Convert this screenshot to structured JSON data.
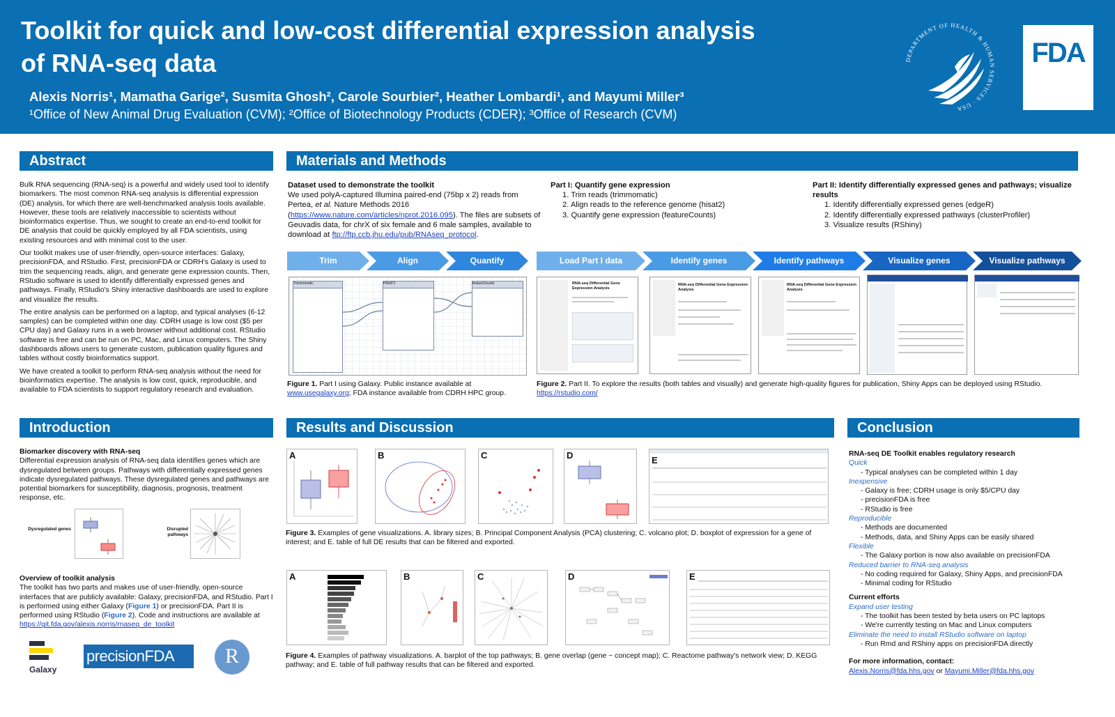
{
  "header": {
    "title_line1": "Toolkit for quick and low-cost differential expression analysis",
    "title_line2": "of RNA-seq data",
    "authors": "Alexis Norris¹, Mamatha Garige², Susmita Ghosh², Carole Sourbier², Heather Lombardi¹, and Mayumi Miller³",
    "affiliations": "¹Office of New Animal Drug Evaluation (CVM); ²Office of Biotechnology Products (CDER); ³Office of Research (CVM)",
    "seal_text": "DEPARTMENT OF HEALTH & HUMAN SERVICES · USA",
    "fda_logo": "FDA"
  },
  "abstract": {
    "heading": "Abstract",
    "p1": "Bulk RNA sequencing (RNA-seq) is a powerful and widely used tool to identify biomarkers. The most common RNA-seq analysis is differential expression (DE) analysis, for which there are well-benchmarked analysis tools available. However, these tools are relatively inaccessible to scientists without bioinformatics expertise. Thus, we sought to create an end-to-end toolkit for DE analysis that could be quickly employed by all FDA scientists, using existing resources and with minimal cost to the user.",
    "p2": "Our toolkit makes use of user-friendly, open-source interfaces: Galaxy, precisionFDA, and RStudio. First, precisionFDA or CDRH's Galaxy is used to trim the sequencing reads, align, and generate gene expression counts. Then, RStudio software is used to identify differentially expressed genes and pathways. Finally, RStudio's Shiny interactive dashboards are used to explore and visualize the results.",
    "p3": "The entire analysis can be performed on a laptop, and typical analyses (6-12 samples) can be completed within one day. CDRH usage is low cost ($5 per CPU day) and Galaxy runs in a web browser without additional cost. RStudio software is free and can be run on PC, Mac, and Linux computers. The Shiny dashboards allows users to generate custom, publication quality figures and tables without costly bioinformatics support.",
    "p4": "We have created a toolkit to perform RNA-seq analysis without the need for bioinformatics expertise. The analysis is low cost, quick, reproducible, and available to FDA scientists to support regulatory research and evaluation."
  },
  "introduction": {
    "heading": "Introduction",
    "sub1": "Biomarker discovery with RNA-seq",
    "p1": "Differential expression analysis of RNA-seq data identifies genes which are dysregulated between groups. Pathways with differentially expressed genes indicate dysregulated pathways. These dysregulated genes and pathways are potential biomarkers for susceptibility, diagnosis, prognosis, treatment response, etc.",
    "label_genes": "Dysregulated genes",
    "label_pathways": "Disrupted pathways",
    "sub2": "Overview of toolkit analysis",
    "p2a": "The toolkit has two parts and makes use of user-friendly, open-source interfaces that are publicly available: Galaxy, precisionFDA, and RStudio. Part I is performed using either Galaxy (",
    "fig1_ref": "Figure 1",
    "p2b": ") or precisionFDA. Part II is performed using RStudio (",
    "fig2_ref": "Figure 2",
    "p2c": "). Code and instructions are available at ",
    "url": "https://git.fda.gov/alexis.norris/rnaseq_de_toolkit",
    "logo_galaxy": "Galaxy",
    "logo_pfda": "precisionFDA",
    "logo_r": "R"
  },
  "methods": {
    "heading": "Materials and Methods",
    "dataset_title": "Dataset used to demonstrate the toolkit",
    "dataset_a": "We used polyA-captured Illumina paired-end (75bp x 2) reads from Pertea, ",
    "dataset_etal": "et al.",
    "dataset_b": " Nature Methods 2016 (",
    "dataset_url": "https://www.nature.com/articles/nprot.2016.095",
    "dataset_c": "). The files are subsets of Geuvadis data, for chrX of six female and 6 male samples, available to download at ",
    "dataset_ftp": "ftp://ftp.ccb.jhu.edu/pub/RNAseq_protocol",
    "part1_title": "Part I: Quantify gene expression",
    "part1_items": [
      "1. Trim reads (trimmomatic)",
      "2. Align reads to the reference genome (hisat2)",
      "3. Quantify gene expression (featureCounts)"
    ],
    "part2_title": "Part II: Identify differentially expressed genes and pathways; visualize results",
    "part2_items": [
      "1. Identify differentially expressed genes (edgeR)",
      "2. Identify differentially expressed pathways (clusterProfiler)",
      "3. Visualize results (RShiny)"
    ],
    "chevrons_part1": [
      "Trim",
      "Align",
      "Quantify"
    ],
    "chevrons_part2": [
      "Load Part I data",
      "Identify genes",
      "Identify pathways",
      "Visualize genes",
      "Visualize pathways"
    ],
    "galaxy_nodes": [
      "Trimmomatic",
      "HISAT2",
      "featureCounts"
    ],
    "fig1_caption_bold": "Figure 1.",
    "fig1_caption": " Part I using Galaxy. Public instance available at ",
    "fig1_link": "www.usegalaxy.org",
    "fig1_caption_b": "; FDA instance available from CDRH HPC group.",
    "fig2_caption_bold": "Figure 2.",
    "fig2_caption": " Part II. To explore the results (both tables and visually) and generate high-quality figures for publication, Shiny Apps can be deployed using RStudio. ",
    "fig2_link": "https://rstudio.com/",
    "doc_titles": [
      "RNA-seq Differential Gene Expression Analysis",
      "RNA-seq Differential Gene Expression Analysis",
      "RNA-seq Differential Gene Expression Analysis"
    ]
  },
  "results": {
    "heading": "Results and Discussion",
    "fig3_labels": [
      "A",
      "B",
      "C",
      "D",
      "E"
    ],
    "fig3_caption_bold": "Figure 3.",
    "fig3_caption": " Examples of gene visualizations. A. library sizes; B. Principal Component Analysis (PCA) clustering; C. volcano plot; D. boxplot of expression for a gene of interest; and E. table of full DE results that can be filtered and exported.",
    "fig4_labels": [
      "A",
      "B",
      "C",
      "D",
      "E"
    ],
    "fig4_caption_bold": "Figure 4.",
    "fig4_caption": " Examples of pathway visualizations. A. barplot of the top pathways; B. gene overlap (gene ~ concept map); C. Reactome pathway's network view; D. KEGG pathway; and E. table of full pathway results that can be filtered and exported."
  },
  "conclusion": {
    "heading": "Conclusion",
    "title1": "RNA-seq DE Toolkit enables regulatory research",
    "groups": [
      {
        "label": "Quick",
        "items": [
          "- Typical analyses can be completed within 1 day"
        ]
      },
      {
        "label": "Inexpensive",
        "items": [
          "- Galaxy is free; CDRH usage is only $5/CPU day",
          "- precisionFDA is free",
          "- RStudio is free"
        ]
      },
      {
        "label": "Reproducible",
        "items": [
          "- Methods are documented",
          "- Methods, data, and Shiny Apps can be easily shared"
        ]
      },
      {
        "label": "Flexible",
        "items": [
          "- The Galaxy portion is now also available on precisionFDA"
        ]
      },
      {
        "label": "Reduced barrier to RNA-seq analysis",
        "items": [
          "- No coding required for Galaxy, Shiny Apps, and precisionFDA",
          "- Minimal coding for RStudio"
        ]
      }
    ],
    "title2": "Current efforts",
    "groups2": [
      {
        "label": "Expand user testing",
        "items": [
          "- The toolkit has been tested by beta users on PC laptops",
          "- We're currently testing on Mac and Linux computers"
        ]
      },
      {
        "label": "Eliminate the need to install RStudio software on laptop",
        "items": [
          "- Run Rmd and RShiny apps on precisionFDA directly"
        ]
      }
    ],
    "contact_title": "For more information, contact:",
    "email1": "Alexis.Norris@fda.hhs.gov",
    "or": " or ",
    "email2": "Mayumi.Miller@fda.hhs.gov"
  },
  "colors": {
    "brand_blue": "#0a6fb3",
    "chevron_light": "#6fb0ea",
    "chevron_mid": "#2f86df",
    "chevron_dark": "#14509a"
  }
}
